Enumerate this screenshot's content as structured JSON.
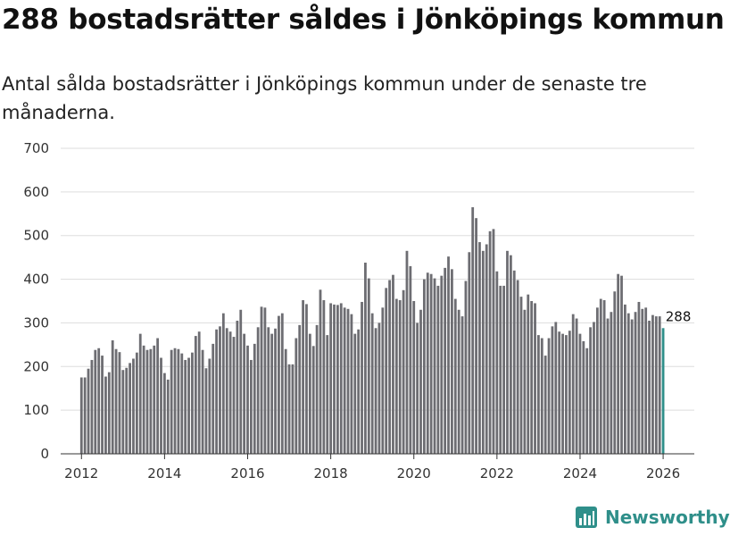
{
  "title": "288 bostadsrätter såldes i Jönköpings kommun",
  "subtitle": "Antal sålda bostadsrätter i Jönköpings kommun under de senaste tre månaderna.",
  "brand": {
    "name": "Newsworthy",
    "color": "#2f8f8a"
  },
  "colors": {
    "bar": "#6d6d72",
    "highlight": "#2f8f8a",
    "grid": "#dddddd",
    "axis": "#333333"
  },
  "chart_data": {
    "type": "bar",
    "title": "288 bostadsrätter såldes i Jönköpings kommun",
    "xlabel": "",
    "ylabel": "",
    "ylim": [
      0,
      700
    ],
    "yticks": [
      0,
      100,
      200,
      300,
      400,
      500,
      600,
      700
    ],
    "xlim": [
      2011.5,
      2026.75
    ],
    "xticks": [
      2012,
      2014,
      2016,
      2018,
      2020,
      2022,
      2024,
      2026
    ],
    "start_year": 2012,
    "start_month": 1,
    "highlight_label": "288",
    "values": [
      175,
      175,
      195,
      215,
      238,
      242,
      225,
      177,
      187,
      260,
      240,
      233,
      192,
      197,
      208,
      218,
      232,
      275,
      248,
      238,
      240,
      248,
      265,
      220,
      185,
      170,
      238,
      242,
      240,
      230,
      215,
      220,
      232,
      270,
      280,
      238,
      196,
      218,
      252,
      285,
      292,
      322,
      288,
      280,
      268,
      305,
      330,
      275,
      248,
      215,
      252,
      290,
      337,
      335,
      290,
      275,
      287,
      316,
      322,
      240,
      205,
      205,
      265,
      295,
      352,
      343,
      275,
      247,
      295,
      376,
      352,
      272,
      345,
      342,
      341,
      345,
      335,
      332,
      320,
      275,
      285,
      348,
      438,
      402,
      322,
      288,
      300,
      335,
      380,
      398,
      410,
      355,
      352,
      375,
      465,
      430,
      350,
      300,
      330,
      400,
      415,
      412,
      402,
      385,
      408,
      426,
      452,
      423,
      355,
      330,
      315,
      396,
      462,
      565,
      540,
      485,
      465,
      480,
      510,
      515,
      418,
      385,
      385,
      465,
      455,
      420,
      398,
      360,
      330,
      365,
      350,
      345,
      272,
      265,
      225,
      265,
      292,
      302,
      280,
      275,
      272,
      282,
      320,
      310,
      275,
      258,
      242,
      290,
      302,
      335,
      355,
      352,
      310,
      325,
      372,
      412,
      408,
      342,
      322,
      308,
      325,
      348,
      332,
      335,
      305,
      318,
      315,
      315,
      288
    ]
  }
}
